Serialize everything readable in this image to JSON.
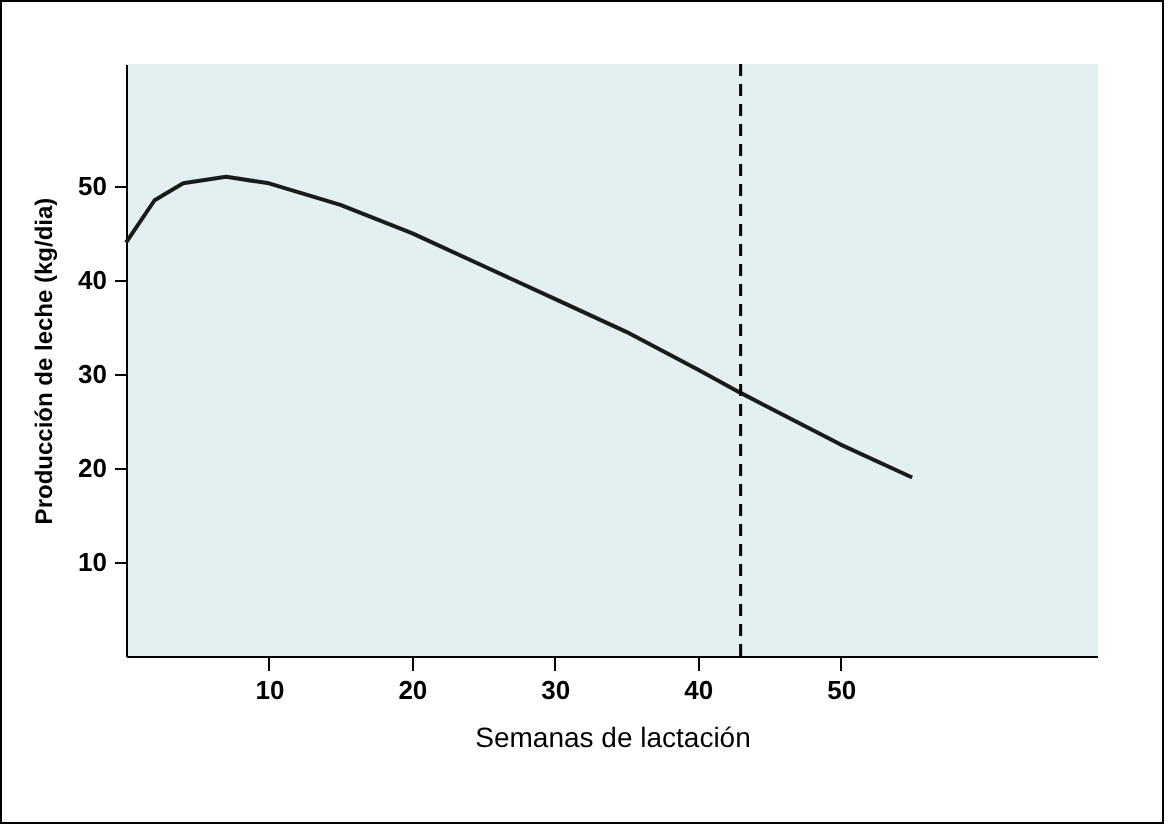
{
  "chart_data": {
    "type": "line",
    "xlabel": "Semanas de lactación",
    "ylabel": "Producción de leche (kg/dia)",
    "x": [
      0,
      2,
      4,
      7,
      10,
      15,
      20,
      25,
      30,
      35,
      40,
      43,
      50,
      55
    ],
    "series": [
      {
        "color": "#1a1a1a",
        "values": [
          44,
          48.5,
          50.3,
          51,
          50.3,
          48,
          45,
          41.5,
          38,
          34.5,
          30.5,
          28,
          22.5,
          19
        ]
      }
    ],
    "xlim": [
      0,
      68
    ],
    "ylim": [
      0,
      63
    ],
    "xticks": [
      10,
      20,
      30,
      40,
      50
    ],
    "yticks": [
      10,
      20,
      30,
      40,
      50
    ],
    "ref_lines": [
      {
        "axis": "x",
        "value": 43,
        "line_style": "dashed"
      }
    ],
    "grid": false,
    "marker": "none",
    "line_style": "solid"
  }
}
